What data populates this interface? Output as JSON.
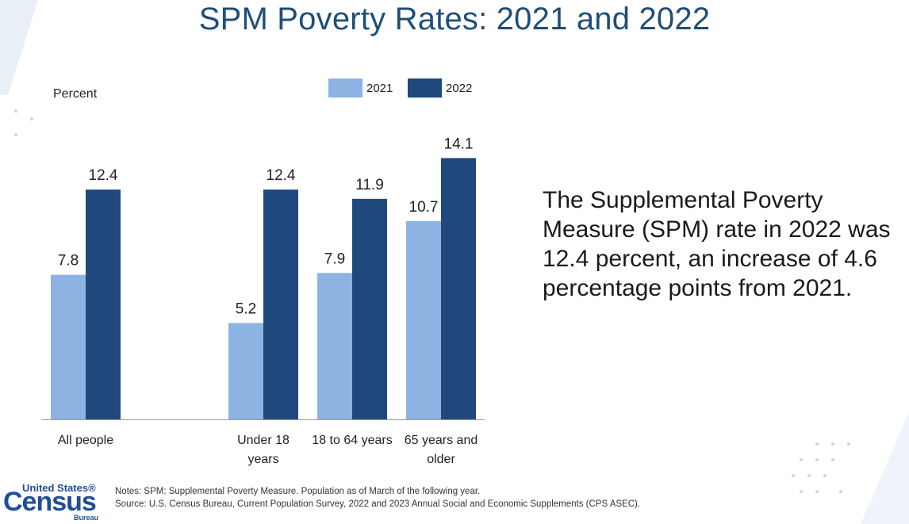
{
  "title": "SPM Poverty Rates: 2021 and 2022",
  "summary": "The Supplemental Poverty Measure (SPM) rate in 2022 was 12.4 percent, an increase of 4.6 percentage points from 2021.",
  "notes": {
    "line1": "Notes: SPM: Supplemental Poverty Measure. Population as of March of the following year.",
    "line2": "Source: U.S. Census Bureau, Current Population Survey, 2022 and 2023 Annual Social and Economic Supplements (CPS ASEC)."
  },
  "logo": {
    "top": "United States®",
    "main": "Census",
    "bottom": "Bureau"
  },
  "colors": {
    "series_2021": "#8db3e2",
    "series_2022": "#1f497d",
    "title": "#1f4e79"
  },
  "chart_data": {
    "type": "bar",
    "ylabel": "Percent",
    "categories": [
      [
        "All people"
      ],
      [
        "Under 18",
        "years"
      ],
      [
        "18 to 64 years"
      ],
      [
        "65 years and",
        "older"
      ]
    ],
    "series": [
      {
        "name": "2021",
        "values": [
          7.8,
          5.2,
          7.9,
          10.7
        ]
      },
      {
        "name": "2022",
        "values": [
          12.4,
          12.4,
          11.9,
          14.1
        ]
      }
    ],
    "ylim": [
      0,
      16
    ],
    "legend": "top",
    "grid": false
  }
}
